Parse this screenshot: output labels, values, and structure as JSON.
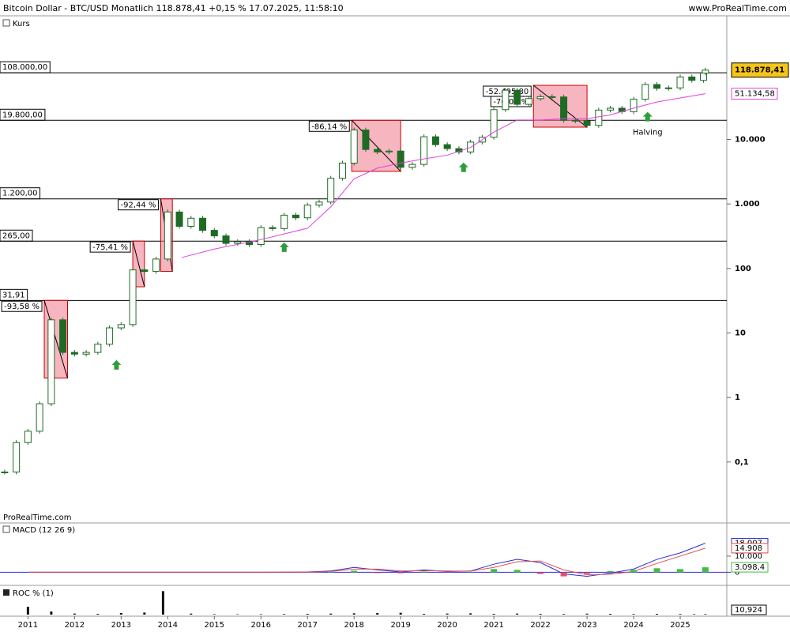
{
  "chart_data": [
    {
      "type": "candlestick",
      "title": "Bitcoin Dollar - BTC/USD Monatlich 118.878,41 +0,15 % 17.07.2025, 11:58:10",
      "source": "www.ProRealTime.com",
      "watermark": "ProRealTime.com",
      "x": [
        2010.5,
        2010.75,
        2011,
        2011.25,
        2011.5,
        2011.75,
        2012,
        2012.25,
        2012.5,
        2012.75,
        2013,
        2013.25,
        2013.5,
        2013.75,
        2014,
        2014.25,
        2014.5,
        2014.75,
        2015,
        2015.25,
        2015.5,
        2015.75,
        2016,
        2016.25,
        2016.5,
        2016.75,
        2017,
        2017.25,
        2017.5,
        2017.75,
        2018,
        2018.25,
        2018.5,
        2018.75,
        2019,
        2019.25,
        2019.5,
        2019.75,
        2020,
        2020.25,
        2020.5,
        2020.75,
        2021,
        2021.25,
        2021.5,
        2021.75,
        2022,
        2022.25,
        2022.5,
        2022.75,
        2023,
        2023.25,
        2023.5,
        2023.75,
        2024,
        2024.25,
        2024.5,
        2024.75,
        2025,
        2025.25,
        2025.5,
        2025.54
      ],
      "series": [
        {
          "name": "Kurs",
          "color": "#1f6b25",
          "values": [
            0.07,
            0.2,
            0.3,
            0.8,
            16,
            5,
            4.7,
            5,
            6.7,
            12,
            13.5,
            95,
            90,
            140,
            750,
            450,
            600,
            390,
            320,
            245,
            260,
            235,
            430,
            415,
            670,
            610,
            960,
            1070,
            2500,
            4300,
            14000,
            7000,
            6400,
            6600,
            3700,
            4100,
            11000,
            8300,
            7200,
            6400,
            9100,
            10800,
            29000,
            58000,
            35000,
            43000,
            46000,
            45500,
            19800,
            19400,
            16500,
            28500,
            30500,
            27000,
            42000,
            71000,
            62000,
            63000,
            93000,
            82500,
            107000,
            118878.41
          ],
          "last_label": {
            "value": 118878.41,
            "label": "118.878,41"
          }
        }
      ],
      "ma": {
        "color": "#e040e0",
        "x": [
          2014.3,
          2015,
          2016,
          2017,
          2017.5,
          2018,
          2018.5,
          2019,
          2019.5,
          2020,
          2020.5,
          2021,
          2021.5,
          2022,
          2022.5,
          2023,
          2023.5,
          2024,
          2024.5,
          2025,
          2025.54
        ],
        "values": [
          148,
          200,
          280,
          420,
          900,
          2450,
          3600,
          4300,
          5000,
          5700,
          7500,
          13000,
          20000,
          20000,
          21000,
          21000,
          24000,
          30600,
          38000,
          44000,
          51134.58
        ],
        "last_label": {
          "value": 51134.58,
          "label": "51.134,58"
        }
      },
      "log": true,
      "xlim": [
        2010.4,
        2026
      ],
      "xticks": [
        2011,
        2012,
        2013,
        2014,
        2015,
        2016,
        2017,
        2018,
        2019,
        2020,
        2021,
        2022,
        2023,
        2024,
        2025
      ],
      "ylim": [
        0.012,
        780000
      ],
      "yticks": [
        {
          "value": 10000,
          "label": "10.000"
        },
        {
          "value": 1000,
          "label": "1.000"
        },
        100,
        10,
        1,
        {
          "value": 0.1,
          "label": "0,1"
        }
      ],
      "levels": [
        {
          "value": 108000,
          "label": "108.000,00"
        },
        {
          "value": 19800,
          "label": "19.800,00"
        },
        {
          "value": 1200,
          "label": "1.200,00"
        },
        {
          "value": 265,
          "label": "265,00"
        },
        {
          "value": 31.91,
          "label": "31,91"
        }
      ],
      "annotations": [
        {
          "x": [
            2011.35,
            2011.85
          ],
          "y": [
            2,
            32
          ],
          "labels": [
            "-93,58 %"
          ]
        },
        {
          "x": [
            2013.25,
            2013.5
          ],
          "y": [
            52,
            266
          ],
          "labels": [
            "-75,41 %"
          ]
        },
        {
          "x": [
            2013.85,
            2014.1
          ],
          "y": [
            90,
            1200
          ],
          "labels": [
            "-92,44 %"
          ]
        },
        {
          "x": [
            2017.95,
            2019.0
          ],
          "y": [
            3200,
            19800
          ],
          "labels": [
            "-86,14 %"
          ]
        },
        {
          "x": [
            2021.85,
            2023.0
          ],
          "y": [
            15500,
            69000
          ],
          "labels": [
            "-52.495,80",
            "-76,09 %"
          ]
        }
      ],
      "halving": {
        "label": "Halving",
        "color": "#2e9e3a",
        "x": [
          2012.9,
          2016.5,
          2020.35,
          2024.3
        ],
        "y": [
          3.2,
          214,
          3700,
          22600
        ]
      }
    },
    {
      "type": "line",
      "legend": "MACD (12 26 9)",
      "x": [
        2011,
        2012,
        2013,
        2014,
        2015,
        2016,
        2017,
        2017.5,
        2018,
        2018.5,
        2019,
        2019.5,
        2020,
        2020.5,
        2021,
        2021.5,
        2022,
        2022.5,
        2023,
        2023.5,
        2024,
        2024.5,
        2025,
        2025.54
      ],
      "series": [
        {
          "color": "#2b2bd6",
          "values": [
            0,
            0,
            0,
            0,
            0,
            0,
            200,
            800,
            3000,
            1500,
            200,
            1500,
            500,
            800,
            5000,
            8000,
            6000,
            -1000,
            -2500,
            -500,
            2000,
            8000,
            12000,
            18007
          ],
          "value_labels": [
            null,
            null,
            null,
            null,
            null,
            null,
            null,
            null,
            null,
            null,
            null,
            null,
            null,
            null,
            null,
            null,
            null,
            null,
            null,
            null,
            null,
            null,
            null,
            "18.007"
          ]
        },
        {
          "color": "#e05050",
          "values": [
            0,
            0,
            0,
            0,
            0,
            0,
            100,
            500,
            2000,
            2000,
            800,
            1000,
            800,
            700,
            3000,
            6500,
            7000,
            1500,
            -1500,
            -1200,
            500,
            5500,
            10000,
            14908
          ],
          "value_labels": [
            null,
            null,
            null,
            null,
            null,
            null,
            null,
            null,
            null,
            null,
            null,
            null,
            null,
            null,
            null,
            null,
            null,
            null,
            null,
            null,
            null,
            null,
            null,
            "14.908"
          ]
        },
        {
          "color": "#44bb44",
          "style": "bar",
          "values": [
            0,
            0,
            0,
            0,
            0,
            0,
            100,
            300,
            1000,
            -500,
            -600,
            500,
            -300,
            100,
            2000,
            1500,
            -1000,
            -2500,
            -1000,
            700,
            1500,
            2500,
            2000,
            3098.4
          ],
          "value_labels": [
            null,
            null,
            null,
            null,
            null,
            null,
            null,
            null,
            null,
            null,
            null,
            null,
            null,
            null,
            null,
            null,
            null,
            null,
            null,
            null,
            null,
            null,
            null,
            "3.098,4"
          ]
        }
      ],
      "ylim": [
        -7600,
        29500
      ],
      "yticks": [
        {
          "value": 10000,
          "label": "10.000"
        },
        0
      ]
    },
    {
      "type": "bar",
      "legend": "ROC % (1)",
      "color": "#111111",
      "x": [
        2011,
        2011.5,
        2012,
        2012.5,
        2013,
        2013.5,
        2013.9,
        2014.5,
        2015,
        2015.5,
        2016,
        2016.5,
        2017,
        2017.5,
        2018,
        2018.5,
        2019,
        2019.5,
        2020,
        2020.5,
        2021,
        2021.5,
        2022,
        2022.5,
        2023,
        2023.5,
        2024,
        2024.5,
        2025,
        2025.3,
        2025.54
      ],
      "values": [
        150,
        60,
        20,
        15,
        30,
        40,
        450,
        20,
        10,
        8,
        10,
        12,
        15,
        20,
        25,
        30,
        35,
        15,
        20,
        25,
        15,
        20,
        15,
        12,
        18,
        15,
        12,
        15,
        12,
        10,
        10.924
      ],
      "value_labels": [
        null,
        null,
        null,
        null,
        null,
        null,
        null,
        null,
        null,
        null,
        null,
        null,
        null,
        null,
        null,
        null,
        null,
        null,
        null,
        null,
        null,
        null,
        null,
        null,
        null,
        null,
        null,
        null,
        null,
        null,
        "10,924"
      ],
      "ylim": [
        0,
        500
      ]
    }
  ]
}
